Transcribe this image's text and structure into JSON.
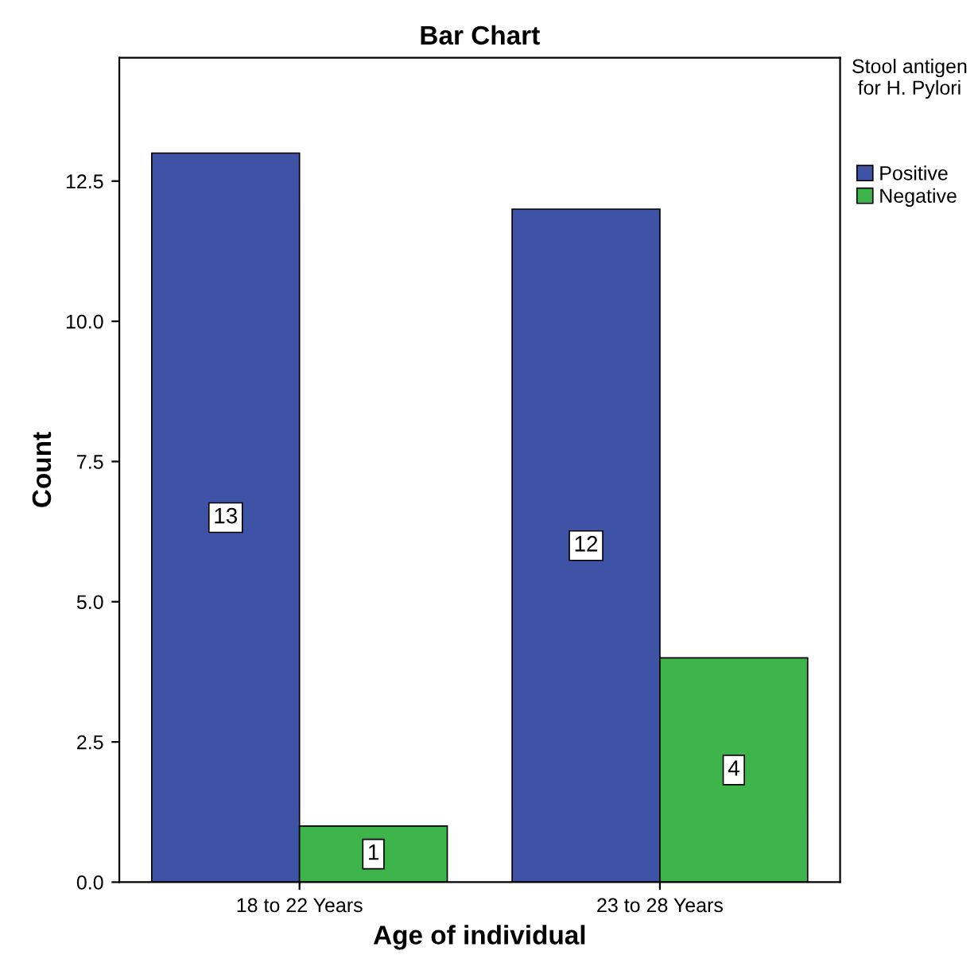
{
  "chart_data": {
    "type": "bar",
    "title": "Bar Chart",
    "xlabel": "Age of individual",
    "ylabel": "Count",
    "legend_title": "Stool antigen for H. Pylori",
    "categories": [
      "18 to 22 Years",
      "23 to 28 Years"
    ],
    "series": [
      {
        "name": "Positive",
        "color": "#3e53a6",
        "values": [
          13,
          12
        ]
      },
      {
        "name": "Negative",
        "color": "#3db54a",
        "values": [
          1,
          4
        ]
      }
    ],
    "ylim": [
      0,
      14.7
    ],
    "yticks": [
      {
        "value": 0,
        "label": "0.0"
      },
      2.5,
      {
        "value": 5,
        "label": "5.0"
      },
      7.5,
      {
        "value": 10,
        "label": "10.0"
      },
      12.5
    ],
    "data_labels": true,
    "grid": false,
    "legend": "top right"
  }
}
